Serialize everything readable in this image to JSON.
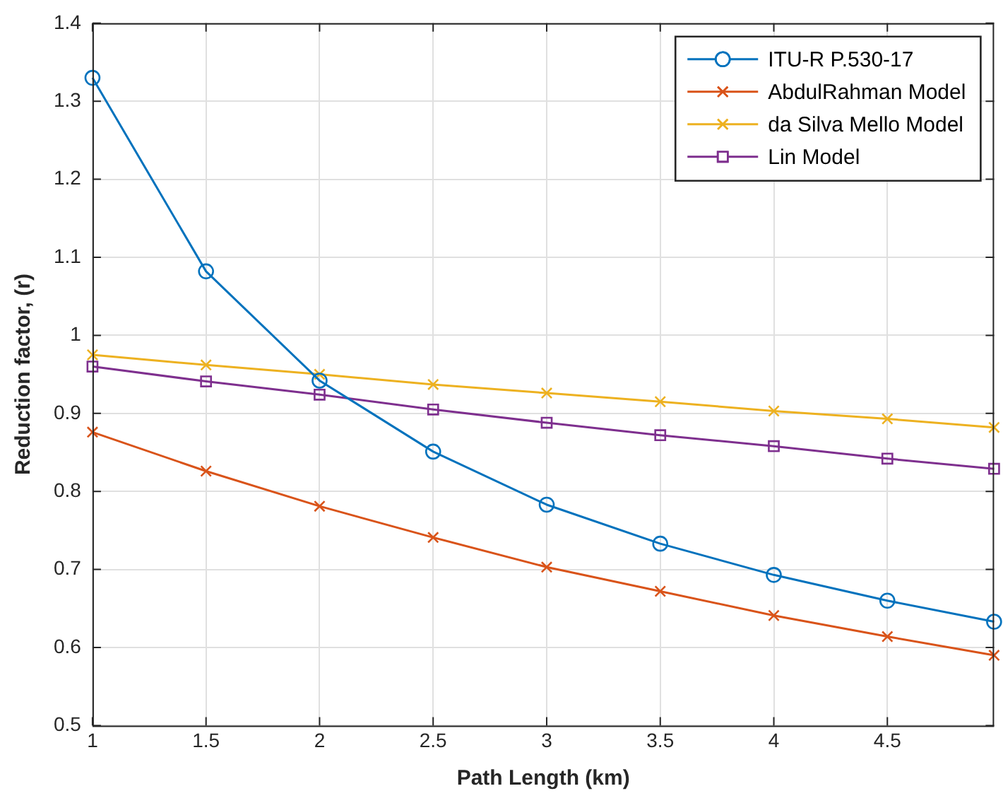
{
  "chart_data": {
    "type": "line",
    "xlabel": "Path Length (km)",
    "ylabel": "Reduction factor, (r)",
    "x": [
      1,
      1.5,
      2,
      2.5,
      3,
      3.5,
      4,
      4.5,
      4.97
    ],
    "xlim": [
      1,
      4.97
    ],
    "xticks": [
      1,
      1.5,
      2,
      2.5,
      3,
      3.5,
      4,
      4.5
    ],
    "ylim": [
      0.5,
      1.4
    ],
    "yticks": [
      0.5,
      0.6,
      0.7,
      0.8,
      0.9,
      1,
      1.1,
      1.2,
      1.3,
      1.4
    ],
    "grid": true,
    "legend": "top right",
    "line_style": "solid",
    "series": [
      {
        "name": "ITU-R P.530-17",
        "color": "#0072bd",
        "marker": "circle",
        "values": [
          1.33,
          1.082,
          0.942,
          0.851,
          0.783,
          0.733,
          0.693,
          0.66,
          0.633
        ]
      },
      {
        "name": "AbdulRahman Model",
        "color": "#d95319",
        "marker": "cross",
        "values": [
          0.876,
          0.826,
          0.781,
          0.741,
          0.703,
          0.672,
          0.641,
          0.614,
          0.59
        ]
      },
      {
        "name": "da Silva Mello Model",
        "color": "#edb120",
        "marker": "cross",
        "values": [
          0.975,
          0.962,
          0.95,
          0.937,
          0.926,
          0.915,
          0.903,
          0.893,
          0.882
        ]
      },
      {
        "name": "Lin Model",
        "color": "#7e2f8e",
        "marker": "square",
        "values": [
          0.96,
          0.941,
          0.924,
          0.905,
          0.888,
          0.872,
          0.858,
          0.842,
          0.829
        ]
      }
    ]
  }
}
